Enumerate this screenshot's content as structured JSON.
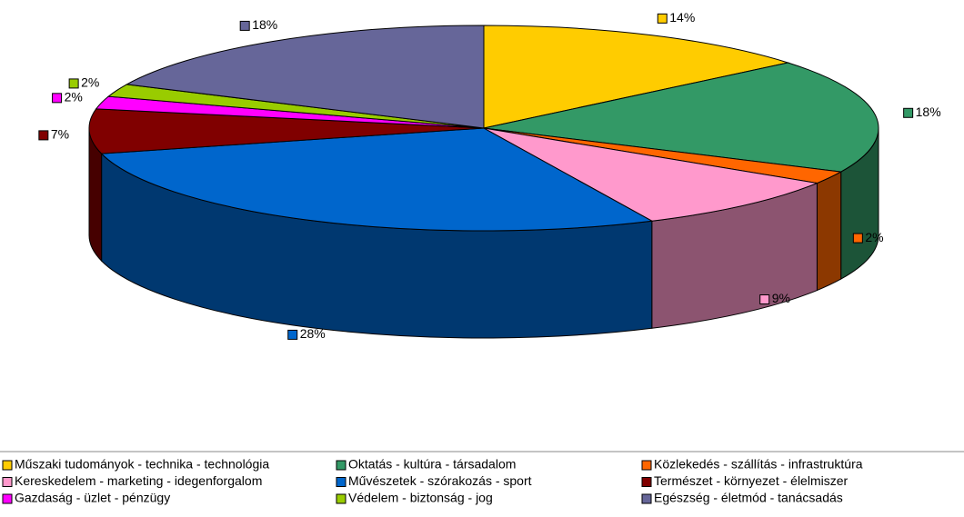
{
  "chart_data": {
    "type": "pie3d",
    "categories": [
      "Műszaki tudományok - technika - technológia",
      "Oktatás - kultúra - társadalom",
      "Közlekedés - szállítás - infrastruktúra",
      "Kereskedelem - marketing - idegenforgalom",
      "Művészetek - szórakozás - sport",
      "Természet - környezet - élelmiszer",
      "Gazdaság - üzlet - pénzügy",
      "Védelem - biztonság - jog",
      "Egészség - életmód - tanácsadás"
    ],
    "values": [
      14,
      18,
      2,
      9,
      28,
      7,
      2,
      2,
      18
    ],
    "value_labels": [
      "14%",
      "18%",
      "2%",
      "9%",
      "28%",
      "7%",
      "2%",
      "2%",
      "18%"
    ],
    "colors": [
      "#ffcc00",
      "#339966",
      "#ff6600",
      "#ff99cc",
      "#0066cc",
      "#800000",
      "#ff00ff",
      "#99cc00",
      "#666699"
    ],
    "legend": "bottom"
  }
}
